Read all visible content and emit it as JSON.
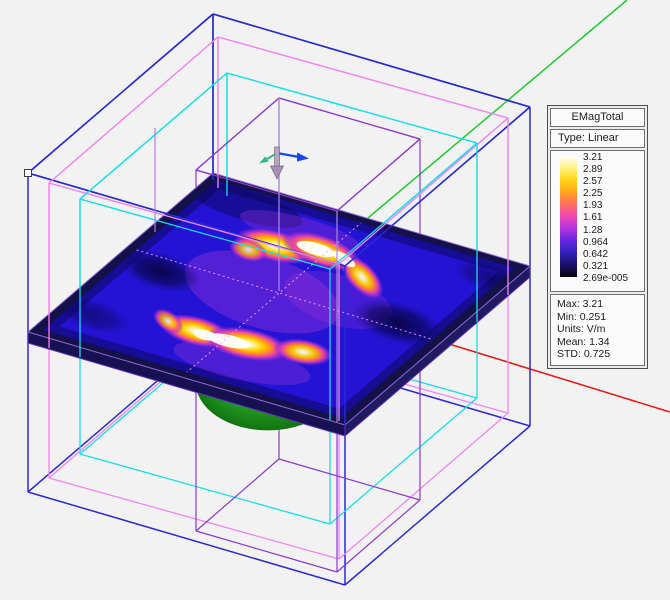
{
  "window": {
    "background": "#f2f2f2"
  },
  "legend": {
    "title": "EMagTotal",
    "type_label": "Type: Linear",
    "scale_values": [
      "3.21",
      "2.89",
      "2.57",
      "2.25",
      "1.93",
      "1.61",
      "1.28",
      "0.964",
      "0.642",
      "0.321",
      "2.69e-005"
    ],
    "colorbar_stops": [
      "#ffffff",
      "#fff27d",
      "#ffd414",
      "#ffa41e",
      "#ff6e62",
      "#ef47b4",
      "#b234e0",
      "#6426e0",
      "#3220bb",
      "#181164",
      "#060510"
    ],
    "stats": [
      "Max: 3.21",
      "Min: 0.251",
      "Units: V/m",
      "Mean: 1.34",
      "STD: 0.725"
    ]
  },
  "scene": {
    "background": "#f2f2f2",
    "axes": {
      "x_color": "#e81414",
      "y_color": "#23c832"
    },
    "boxes": {
      "outer_blue": "#2a2ad0",
      "inner_magenta": "#f086ef",
      "inner_cyan": "#16dfe3",
      "inner_purple": "#8a3ace",
      "extra_violet": "#b879e6",
      "purple_over": "#a98be0"
    },
    "plate": {
      "base_blue": "#2413d4",
      "frame": "#141048",
      "side_left": "#171152",
      "side_right": "#201a61",
      "rim_stroke": "#8f68d6",
      "slab_stroke": "#5e30b8",
      "hot_magenta": "#a838d8",
      "dashed_hidden": "rgba(250,160,245,0.9)"
    },
    "dome": {
      "light": "#52cf52",
      "mid": "#2aa82a",
      "dark": "#117511",
      "outline": "#1a6e1a"
    },
    "triad": {
      "x_arrow": "#1846ea",
      "y_arrow": "#2eb87e",
      "normal_arrow": "#a691b0",
      "normal_edge": "#77658a"
    },
    "handle": {
      "fill": "#ffffff",
      "stroke": "#3c3c3c"
    }
  }
}
